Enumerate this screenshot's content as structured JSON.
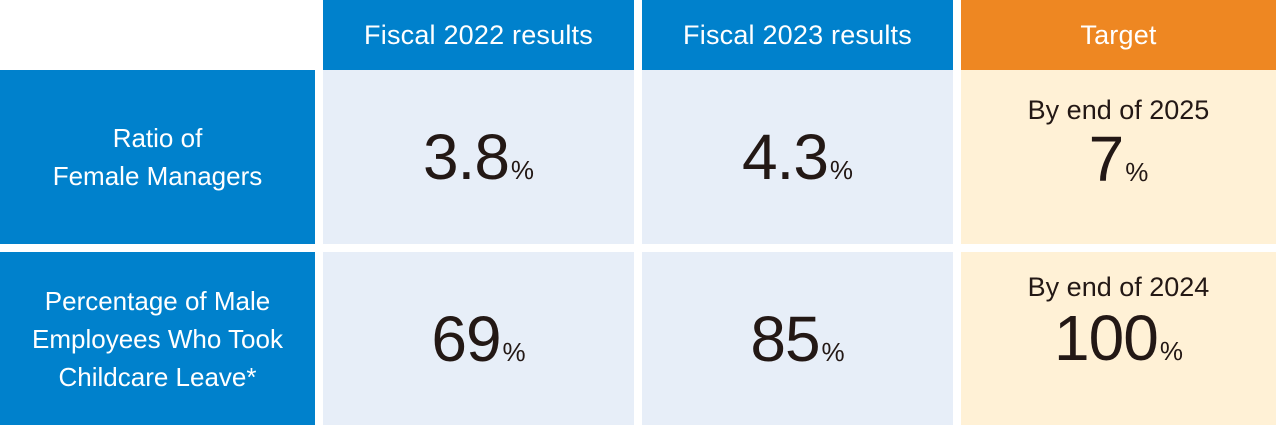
{
  "colors": {
    "header_blue": "#0081CC",
    "header_orange": "#EE8722",
    "result_bg": "#E7EEF8",
    "target_bg": "#FFF1D6",
    "text_dark": "#231815"
  },
  "columns": {
    "fy2022": "Fiscal 2022 results",
    "fy2023": "Fiscal 2023 results",
    "target": "Target"
  },
  "rows": [
    {
      "label_lines": [
        "Ratio of",
        "Female Managers"
      ],
      "fy2022": "3.8",
      "fy2023": "4.3",
      "target_label": "By end of 2025",
      "target_value": "7",
      "unit": "%"
    },
    {
      "label_lines": [
        "Percentage of Male",
        "Employees Who Took",
        "Childcare Leave*"
      ],
      "fy2022": "69",
      "fy2023": "85",
      "target_label": "By end of 2024",
      "target_value": "100",
      "unit": "%"
    }
  ]
}
